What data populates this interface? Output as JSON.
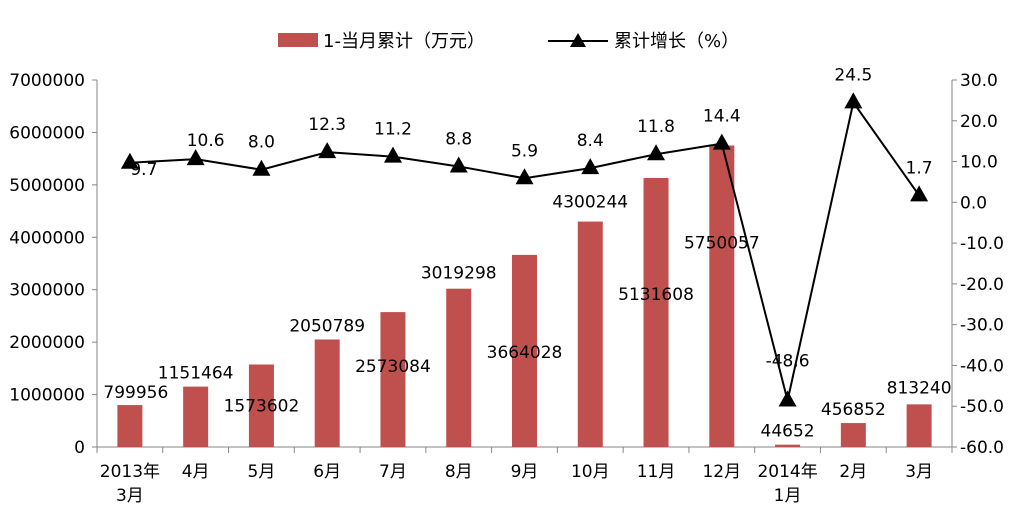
{
  "chart_data": {
    "type": "bar",
    "categories": [
      [
        "2013年",
        "3月"
      ],
      [
        "4月"
      ],
      [
        "5月"
      ],
      [
        "6月"
      ],
      [
        "7月"
      ],
      [
        "8月"
      ],
      [
        "9月"
      ],
      [
        "10月"
      ],
      [
        "11月"
      ],
      [
        "12月"
      ],
      [
        "2014年",
        "1月"
      ],
      [
        "2月"
      ],
      [
        "3月"
      ]
    ],
    "series": [
      {
        "name": "1-当月累计（万元）",
        "type": "bar",
        "axis": "left",
        "color": "#C0504D",
        "values": [
          799956,
          1151464,
          1573602,
          2050789,
          2573084,
          3019298,
          3664028,
          4300244,
          5131608,
          5750057,
          44652,
          456852,
          813240
        ],
        "labels": [
          "799956",
          "1151464",
          "1573602",
          "2050789",
          "2573084",
          "3019298",
          "3664028",
          "4300244",
          "5131608",
          "5750057",
          "44652",
          "456852",
          "813240"
        ]
      },
      {
        "name": "累计增长（%）",
        "type": "line",
        "axis": "right",
        "color": "#000000",
        "marker": "triangle",
        "values": [
          9.7,
          10.6,
          8.0,
          12.3,
          11.2,
          8.8,
          5.9,
          8.4,
          11.8,
          14.4,
          -48.6,
          24.5,
          1.7
        ],
        "labels": [
          "9.7",
          "10.6",
          "8.0",
          "12.3",
          "11.2",
          "8.8",
          "5.9",
          "8.4",
          "11.8",
          "14.4",
          "-48.6",
          "24.5",
          "1.7"
        ]
      }
    ],
    "y_left": {
      "min": 0,
      "max": 7000000,
      "ticks": [
        0,
        1000000,
        2000000,
        3000000,
        4000000,
        5000000,
        6000000,
        7000000
      ],
      "tick_labels": [
        "0",
        "1000000",
        "2000000",
        "3000000",
        "4000000",
        "5000000",
        "6000000",
        "7000000"
      ]
    },
    "y_right": {
      "min": -60,
      "max": 30,
      "ticks": [
        -60,
        -50,
        -40,
        -30,
        -20,
        -10,
        0,
        10,
        20,
        30
      ],
      "tick_labels": [
        "-60.0",
        "-50.0",
        "-40.0",
        "-30.0",
        "-20.0",
        "-10.0",
        "0.0",
        "10.0",
        "20.0",
        "30.0"
      ]
    },
    "legend": {
      "position": "top-center"
    },
    "grid": false
  }
}
